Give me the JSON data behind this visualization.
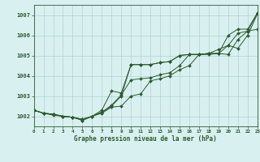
{
  "bg_color": "#d8f0f0",
  "grid_color": "#b0d8d0",
  "line_color": "#2d5a2d",
  "xlabel": "Graphe pression niveau de la mer (hPa)",
  "ylim": [
    1001.5,
    1007.5
  ],
  "xlim": [
    0,
    23
  ],
  "yticks": [
    1002,
    1003,
    1004,
    1005,
    1006,
    1007
  ],
  "xticks": [
    0,
    1,
    2,
    3,
    4,
    5,
    6,
    7,
    8,
    9,
    10,
    11,
    12,
    13,
    14,
    15,
    16,
    17,
    18,
    19,
    20,
    21,
    22,
    23
  ],
  "series": [
    [
      1002.3,
      1002.15,
      1002.1,
      1002.0,
      1001.95,
      1001.8,
      1002.0,
      1002.2,
      1002.5,
      1003.0,
      1004.55,
      1004.55,
      1004.55,
      1004.65,
      1004.7,
      1005.0,
      1005.05,
      1005.05,
      1005.1,
      1005.1,
      1006.0,
      1006.3,
      1006.3,
      1007.1
    ],
    [
      1002.3,
      1002.15,
      1002.1,
      1002.0,
      1001.95,
      1001.8,
      1002.0,
      1002.3,
      1003.25,
      1003.15,
      1004.55,
      1004.55,
      1004.55,
      1004.65,
      1004.7,
      1005.0,
      1005.05,
      1005.05,
      1005.1,
      1005.1,
      1005.5,
      1006.1,
      1006.2,
      1007.1
    ],
    [
      1002.3,
      1002.15,
      1002.1,
      1002.0,
      1001.95,
      1001.85,
      1002.0,
      1002.2,
      1002.55,
      1003.05,
      1003.8,
      1003.85,
      1003.9,
      1004.05,
      1004.15,
      1004.5,
      1005.05,
      1005.05,
      1005.1,
      1005.3,
      1005.5,
      1005.35,
      1006.0,
      1007.05
    ],
    [
      1002.3,
      1002.15,
      1002.05,
      1002.0,
      1001.95,
      1001.85,
      1002.0,
      1002.15,
      1002.45,
      1002.5,
      1003.0,
      1003.1,
      1003.75,
      1003.85,
      1004.0,
      1004.3,
      1004.5,
      1005.05,
      1005.05,
      1005.1,
      1005.05,
      1005.8,
      1006.2,
      1006.3
    ]
  ]
}
